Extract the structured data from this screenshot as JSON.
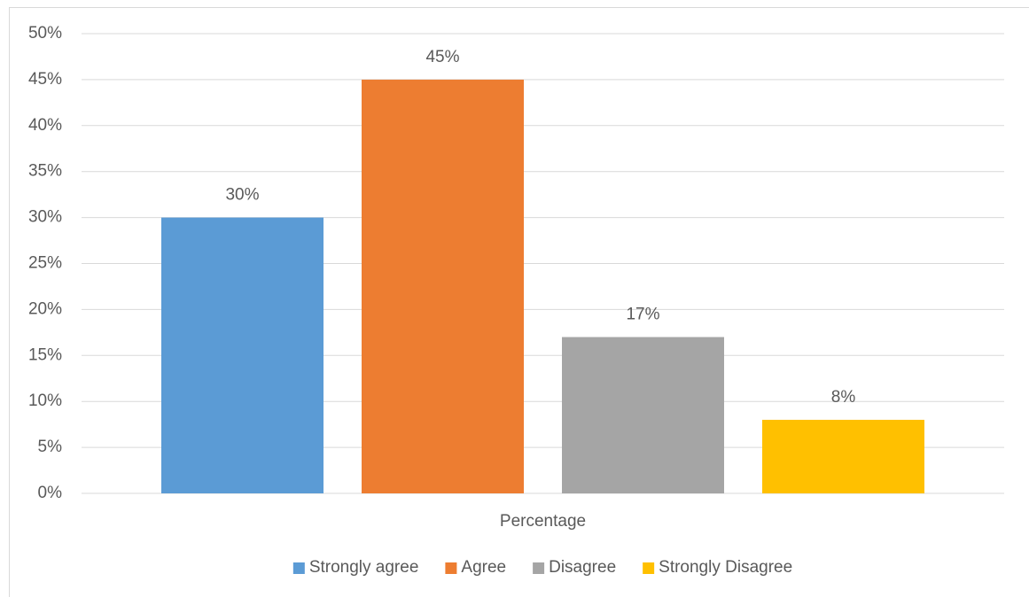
{
  "chart_data": {
    "type": "bar",
    "categories": [
      "Percentage"
    ],
    "series": [
      {
        "name": "Strongly agree",
        "color": "#5b9bd5",
        "values": [
          30
        ],
        "value_labels": [
          "30%"
        ]
      },
      {
        "name": "Agree",
        "color": "#ed7d31",
        "values": [
          45
        ],
        "value_labels": [
          "45%"
        ]
      },
      {
        "name": "Disagree",
        "color": "#a5a5a5",
        "values": [
          17
        ],
        "value_labels": [
          "17%"
        ]
      },
      {
        "name": "Strongly Disagree",
        "color": "#ffc000",
        "values": [
          8
        ],
        "value_labels": [
          "8%"
        ]
      }
    ],
    "ylim": [
      0,
      50
    ],
    "yticks": [
      {
        "value": 0,
        "label": "0%"
      },
      {
        "value": 5,
        "label": "5%"
      },
      {
        "value": 10,
        "label": "10%"
      },
      {
        "value": 15,
        "label": "15%"
      },
      {
        "value": 20,
        "label": "20%"
      },
      {
        "value": 25,
        "label": "25%"
      },
      {
        "value": 30,
        "label": "30%"
      },
      {
        "value": 35,
        "label": "35%"
      },
      {
        "value": 40,
        "label": "40%"
      },
      {
        "value": 45,
        "label": "45%"
      },
      {
        "value": 50,
        "label": "50%"
      }
    ],
    "grid": true,
    "legend": "bottom"
  }
}
